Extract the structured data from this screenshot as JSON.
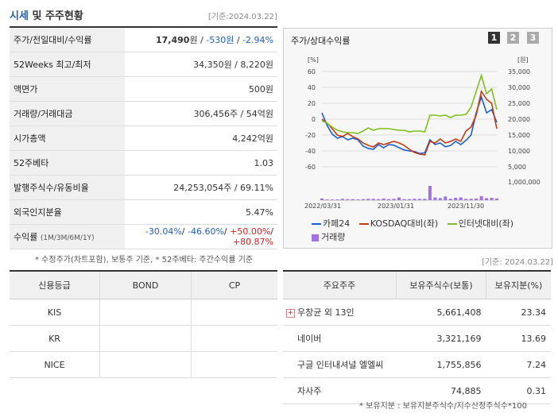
{
  "header": {
    "title_a": "시세",
    "title_b": "및 주주현황",
    "date": "[기준:2024.03.22]"
  },
  "info_rows": [
    {
      "label": "주가/전일대비/수익률",
      "price": "17,490",
      "unit": "원",
      "change": "-530원",
      "rate": "-2.94%"
    },
    {
      "label": "52Weeks 최고/최저",
      "value": "34,350원 / 8,220원"
    },
    {
      "label": "액면가",
      "value": "500원"
    },
    {
      "label": "거래량/거래대금",
      "value": "306,456주 / 54억원"
    },
    {
      "label": "시가총액",
      "value": "4,242억원"
    },
    {
      "label": "52주베타",
      "value": "1.03"
    },
    {
      "label": "발행주식수/유동비율",
      "value": "24,253,054주 / 69.11%"
    },
    {
      "label": "외국인지분율",
      "value": "5.47%"
    },
    {
      "label": "수익률",
      "sub": "(1M/3M/6M/1Y)",
      "r1": "-30.04%",
      "r2": "-46.60%",
      "r3": "+50.00%",
      "r4": "+80.87%"
    }
  ],
  "note1": "* 수정주가(차트포함), 보통주 기준, * 52주베타: 주간수익률 기준",
  "chart_panel": {
    "title": "주가/상대수익률",
    "pages": [
      "1",
      "2",
      "3"
    ],
    "active_page": "1"
  },
  "chart_data": {
    "type": "line",
    "left_axis_unit": "[%]",
    "right_axis_unit": "[원]",
    "left_ticks": [
      "60",
      "40",
      "20",
      "0",
      "-20",
      "-40",
      "-60"
    ],
    "left_ylim": [
      -60,
      60
    ],
    "right_ticks": [
      "35,000",
      "30,000",
      "25,000",
      "20,000",
      "15,000",
      "10,000",
      "5,000"
    ],
    "right_ylim": [
      5000,
      35000
    ],
    "volume_tick": "1,000,000",
    "x_labels": [
      "2022/03/31",
      "2023/01/31",
      "2023/11/30"
    ],
    "series": [
      {
        "name": "카페24",
        "color": "#1a5fd1",
        "axis": "right",
        "values": [
          22000,
          18000,
          15300,
          14000,
          14500,
          13500,
          14000,
          13500,
          11500,
          10800,
          10500,
          12000,
          11000,
          12000,
          11800,
          11000,
          10300,
          10000,
          9800,
          9200,
          9400,
          13500,
          12000,
          12500,
          11300,
          11700,
          13000,
          12000,
          13300,
          15000,
          22000,
          27000,
          22000,
          23000,
          19000
        ]
      },
      {
        "name": "KOSDAQ대비(좌)",
        "color": "#c43a10",
        "axis": "left",
        "values": [
          0,
          -5,
          -12,
          -20,
          -22,
          -18,
          -22,
          -25,
          -30,
          -33,
          -35,
          -30,
          -32,
          -30,
          -28,
          -30,
          -33,
          -38,
          -42,
          -44,
          -45,
          -28,
          -30,
          -25,
          -30,
          -28,
          -25,
          -28,
          -15,
          -10,
          5,
          35,
          25,
          20,
          -12
        ]
      },
      {
        "name": "인터넷대비(좌)",
        "color": "#7fbf1f",
        "axis": "left",
        "values": [
          -2,
          -5,
          -10,
          -14,
          -16,
          -17,
          -17,
          -18,
          -15,
          -11,
          -14,
          -12,
          -12,
          -12,
          -13,
          -14,
          -14,
          -16,
          -15,
          -15,
          -16,
          5,
          5,
          4,
          5,
          2,
          5,
          5,
          6,
          15,
          35,
          55,
          32,
          38,
          12
        ]
      }
    ],
    "volume": {
      "name": "거래량",
      "color": "#9f73e0",
      "values": [
        5,
        2,
        2,
        2,
        4,
        3,
        3,
        2,
        3,
        4,
        4,
        3,
        5,
        3,
        4,
        8,
        3,
        3,
        4,
        4,
        4,
        42,
        8,
        6,
        11,
        4,
        7,
        8,
        4,
        4,
        5,
        12,
        6,
        7,
        5
      ]
    },
    "legend": [
      "카페24",
      "KOSDAQ대비(좌)",
      "인터넷대비(좌)",
      "거래량"
    ]
  },
  "date2": "[기준: 2024.03.22]",
  "rating_table": {
    "headers": [
      "신용등급",
      "BOND",
      "CP"
    ],
    "rows": [
      [
        "KIS",
        "",
        ""
      ],
      [
        "KR",
        "",
        ""
      ],
      [
        "NICE",
        "",
        ""
      ]
    ]
  },
  "holders_table": {
    "headers": [
      "주요주주",
      "보유주식수(보통)",
      "보유지분(%)"
    ],
    "rows": [
      [
        "우창균 외 13인",
        "5,661,408",
        "23.34"
      ],
      [
        "네이버",
        "3,321,169",
        "13.69"
      ],
      [
        "구글 인터내셔널 엘엘씨",
        "1,755,856",
        "7.24"
      ],
      [
        "자사주",
        "74,885",
        "0.31"
      ]
    ],
    "plus_icon": "+"
  },
  "note2": "* 보유지분 : 보유지분주식수/지수산정주식수*100"
}
